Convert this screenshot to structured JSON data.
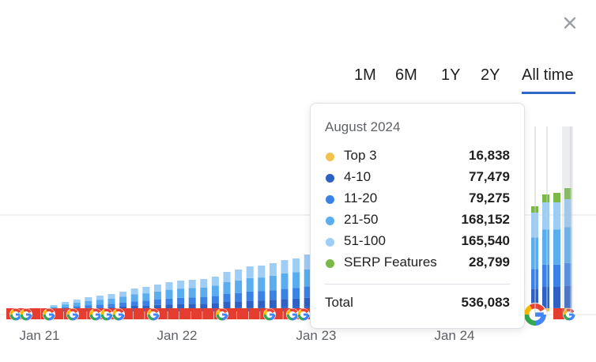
{
  "colors": {
    "top3": "#f2c14e",
    "r4_10": "#2d62c4",
    "r11_20": "#3b82e6",
    "r21_50": "#5aaef0",
    "r51_100": "#9ecdf6",
    "serp": "#7bb848",
    "active_underline": "#2e68c9",
    "google_marker": "#e53e30"
  },
  "close_icon": "close-icon",
  "time_ranges": [
    {
      "label": "1M",
      "active": false
    },
    {
      "label": "6M",
      "active": false
    },
    {
      "label": "1Y",
      "active": false
    },
    {
      "label": "2Y",
      "active": false
    },
    {
      "label": "All time",
      "active": true
    }
  ],
  "chart_data": {
    "type": "bar",
    "stacked": true,
    "x_tick_labels": [
      "Jan 21",
      "Jan 22",
      "Jan 23",
      "Jan 24"
    ],
    "series_names": [
      "Top 3",
      "4-10",
      "11-20",
      "21-50",
      "51-100",
      "SERP Features"
    ],
    "series_values_aug_2024": [
      16838,
      77479,
      79275,
      168152,
      165540,
      28799
    ],
    "total_aug_2024": 536083,
    "grid": true,
    "marker_icon": "google-icon"
  },
  "tooltip": {
    "month": "August 2024",
    "rows": [
      {
        "label": "Top 3",
        "value": "16,838"
      },
      {
        "label": "4-10",
        "value": "77,479"
      },
      {
        "label": "11-20",
        "value": "79,275"
      },
      {
        "label": "21-50",
        "value": "168,152"
      },
      {
        "label": "51-100",
        "value": "165,540"
      },
      {
        "label": "SERP Features",
        "value": "28,799"
      }
    ],
    "total_label": "Total",
    "total_value": "536,083"
  }
}
